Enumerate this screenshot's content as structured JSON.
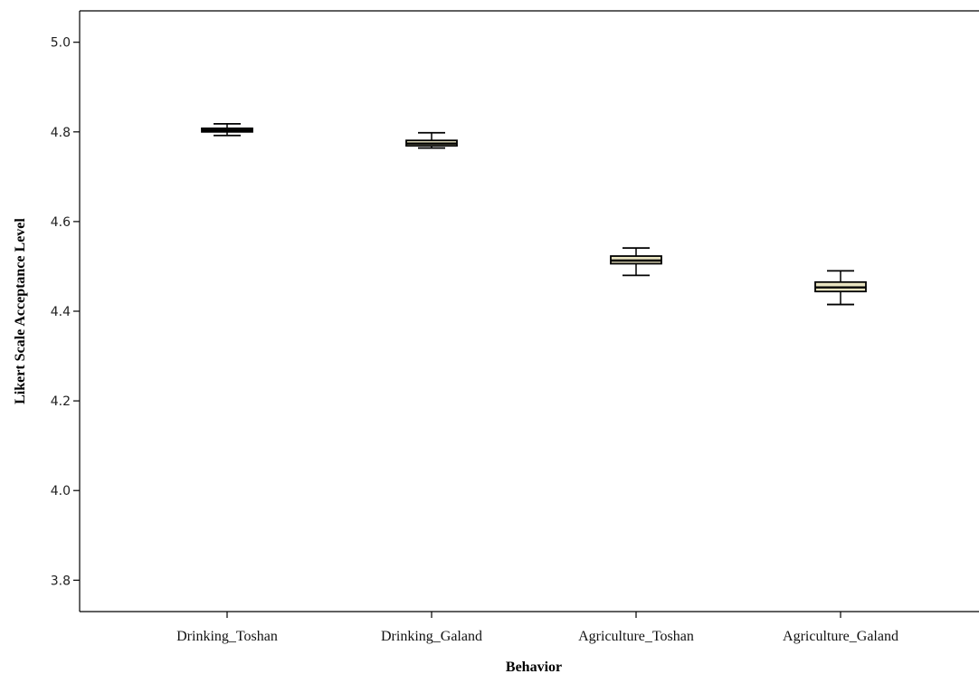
{
  "chart_data": {
    "type": "boxplot",
    "xlabel": "Behavior",
    "ylabel": "Likert Scale Acceptance Level",
    "ylim": [
      3.73,
      5.07
    ],
    "yticks": [
      {
        "value": 3.8,
        "label": "3.8"
      },
      {
        "value": 4.0,
        "label": "4.0"
      },
      {
        "value": 4.2,
        "label": "4.2"
      },
      {
        "value": 4.4,
        "label": "4.4"
      },
      {
        "value": 4.6,
        "label": "4.6"
      },
      {
        "value": 4.8,
        "label": "4.8"
      },
      {
        "value": 5.0,
        "label": "5.0"
      }
    ],
    "grid": false,
    "box_fill": "#e8e3c0",
    "line_color": "#000000",
    "categories": [
      "Drinking_Toshan",
      "Drinking_Galand",
      "Agriculture_Toshan",
      "Agriculture_Galand"
    ],
    "boxes": [
      {
        "min": 4.792,
        "q1": 4.8,
        "median": 4.804,
        "q3": 4.808,
        "max": 4.818
      },
      {
        "min": 4.764,
        "q1": 4.769,
        "median": 4.774,
        "q3": 4.781,
        "max": 4.798
      },
      {
        "min": 4.48,
        "q1": 4.506,
        "median": 4.513,
        "q3": 4.523,
        "max": 4.541
      },
      {
        "min": 4.415,
        "q1": 4.444,
        "median": 4.453,
        "q3": 4.465,
        "max": 4.49
      }
    ]
  }
}
